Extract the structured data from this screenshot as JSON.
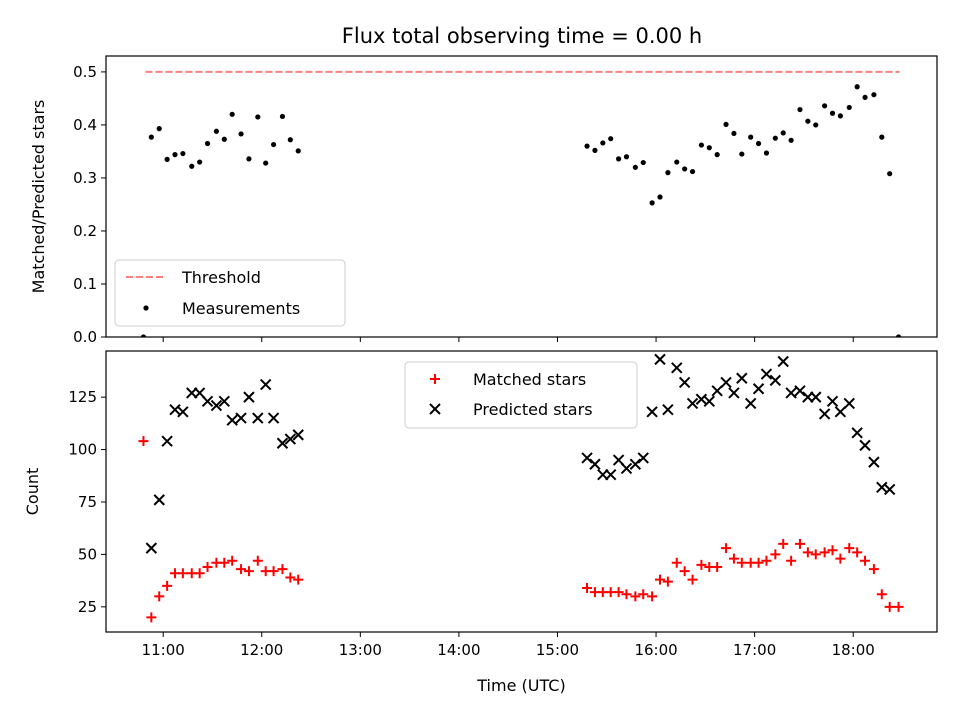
{
  "figure": {
    "title": "Flux total observing time = 0.00 h"
  },
  "chart_data": [
    {
      "type": "scatter",
      "title": "Flux total observing time = 0.00 h",
      "xlabel": "",
      "ylabel": "Matched/Predicted stars",
      "xlim": [
        10.42,
        18.85
      ],
      "ylim": [
        0,
        0.53
      ],
      "x_ticks": [
        11,
        12,
        13,
        14,
        15,
        16,
        17,
        18
      ],
      "x_tick_labels": [
        "11:00",
        "12:00",
        "13:00",
        "14:00",
        "15:00",
        "16:00",
        "17:00",
        "18:00"
      ],
      "x_tick_labels_visible": false,
      "y_ticks": [
        0.0,
        0.1,
        0.2,
        0.3,
        0.4,
        0.5
      ],
      "y_tick_labels": [
        "0.0",
        "0.1",
        "0.2",
        "0.3",
        "0.4",
        "0.5"
      ],
      "legend_position": "lower-left",
      "threshold": {
        "name": "Threshold",
        "value": 0.5,
        "x_range": [
          10.82,
          18.47
        ],
        "color": "#ff7f7f",
        "style": "dashed"
      },
      "series": [
        {
          "name": "Measurements",
          "color": "#000000",
          "marker": "dot",
          "points": [
            [
              10.8,
              0.0
            ],
            [
              10.88,
              0.377
            ],
            [
              10.96,
              0.393
            ],
            [
              11.04,
              0.335
            ],
            [
              11.12,
              0.344
            ],
            [
              11.2,
              0.346
            ],
            [
              11.29,
              0.322
            ],
            [
              11.37,
              0.33
            ],
            [
              11.45,
              0.365
            ],
            [
              11.54,
              0.388
            ],
            [
              11.62,
              0.373
            ],
            [
              11.7,
              0.42
            ],
            [
              11.79,
              0.383
            ],
            [
              11.87,
              0.336
            ],
            [
              11.96,
              0.415
            ],
            [
              12.04,
              0.328
            ],
            [
              12.12,
              0.363
            ],
            [
              12.21,
              0.416
            ],
            [
              12.29,
              0.372
            ],
            [
              12.37,
              0.351
            ],
            [
              15.3,
              0.36
            ],
            [
              15.38,
              0.352
            ],
            [
              15.46,
              0.366
            ],
            [
              15.54,
              0.374
            ],
            [
              15.62,
              0.336
            ],
            [
              15.7,
              0.34
            ],
            [
              15.79,
              0.32
            ],
            [
              15.87,
              0.329
            ],
            [
              15.96,
              0.253
            ],
            [
              16.04,
              0.264
            ],
            [
              16.12,
              0.31
            ],
            [
              16.21,
              0.33
            ],
            [
              16.29,
              0.317
            ],
            [
              16.37,
              0.312
            ],
            [
              16.46,
              0.362
            ],
            [
              16.54,
              0.357
            ],
            [
              16.62,
              0.344
            ],
            [
              16.71,
              0.401
            ],
            [
              16.79,
              0.384
            ],
            [
              16.87,
              0.345
            ],
            [
              16.96,
              0.377
            ],
            [
              17.04,
              0.365
            ],
            [
              17.12,
              0.347
            ],
            [
              17.21,
              0.375
            ],
            [
              17.29,
              0.385
            ],
            [
              17.37,
              0.371
            ],
            [
              17.46,
              0.429
            ],
            [
              17.54,
              0.407
            ],
            [
              17.62,
              0.4
            ],
            [
              17.71,
              0.436
            ],
            [
              17.79,
              0.422
            ],
            [
              17.87,
              0.417
            ],
            [
              17.96,
              0.433
            ],
            [
              18.04,
              0.472
            ],
            [
              18.12,
              0.452
            ],
            [
              18.21,
              0.457
            ],
            [
              18.29,
              0.377
            ],
            [
              18.37,
              0.308
            ],
            [
              18.46,
              0.0
            ]
          ]
        }
      ]
    },
    {
      "type": "scatter",
      "title": "",
      "xlabel": "Time (UTC)",
      "ylabel": "Count",
      "xlim": [
        10.42,
        18.85
      ],
      "ylim": [
        13,
        147
      ],
      "x_ticks": [
        11,
        12,
        13,
        14,
        15,
        16,
        17,
        18
      ],
      "x_tick_labels": [
        "11:00",
        "12:00",
        "13:00",
        "14:00",
        "15:00",
        "16:00",
        "17:00",
        "18:00"
      ],
      "y_ticks": [
        25,
        50,
        75,
        100,
        125
      ],
      "y_tick_labels": [
        "25",
        "50",
        "75",
        "100",
        "125"
      ],
      "legend_position": "top-center",
      "series": [
        {
          "name": "Matched stars",
          "color": "#ff0000",
          "marker": "plus",
          "points": [
            [
              10.8,
              104
            ],
            [
              10.88,
              20
            ],
            [
              10.96,
              30
            ],
            [
              11.04,
              35
            ],
            [
              11.12,
              41
            ],
            [
              11.2,
              41
            ],
            [
              11.29,
              41
            ],
            [
              11.37,
              41
            ],
            [
              11.45,
              44
            ],
            [
              11.54,
              46
            ],
            [
              11.62,
              46
            ],
            [
              11.7,
              47
            ],
            [
              11.79,
              43
            ],
            [
              11.87,
              42
            ],
            [
              11.96,
              47
            ],
            [
              12.04,
              42
            ],
            [
              12.12,
              42
            ],
            [
              12.21,
              43
            ],
            [
              12.29,
              39
            ],
            [
              12.37,
              38
            ],
            [
              15.3,
              34
            ],
            [
              15.38,
              32
            ],
            [
              15.46,
              32
            ],
            [
              15.54,
              32
            ],
            [
              15.62,
              32
            ],
            [
              15.7,
              31
            ],
            [
              15.79,
              30
            ],
            [
              15.87,
              31
            ],
            [
              15.96,
              30
            ],
            [
              16.04,
              38
            ],
            [
              16.12,
              37
            ],
            [
              16.21,
              46
            ],
            [
              16.29,
              42
            ],
            [
              16.37,
              38
            ],
            [
              16.46,
              45
            ],
            [
              16.54,
              44
            ],
            [
              16.62,
              44
            ],
            [
              16.71,
              53
            ],
            [
              16.79,
              48
            ],
            [
              16.87,
              46
            ],
            [
              16.96,
              46
            ],
            [
              17.04,
              46
            ],
            [
              17.12,
              47
            ],
            [
              17.21,
              50
            ],
            [
              17.29,
              55
            ],
            [
              17.37,
              47
            ],
            [
              17.46,
              55
            ],
            [
              17.54,
              51
            ],
            [
              17.62,
              50
            ],
            [
              17.71,
              51
            ],
            [
              17.79,
              52
            ],
            [
              17.87,
              48
            ],
            [
              17.96,
              53
            ],
            [
              18.04,
              51
            ],
            [
              18.12,
              47
            ],
            [
              18.21,
              43
            ],
            [
              18.29,
              31
            ],
            [
              18.37,
              25
            ],
            [
              18.46,
              25
            ]
          ]
        },
        {
          "name": "Predicted stars",
          "color": "#000000",
          "marker": "x",
          "points": [
            [
              10.88,
              53
            ],
            [
              10.96,
              76
            ],
            [
              11.04,
              104
            ],
            [
              11.12,
              119
            ],
            [
              11.2,
              118
            ],
            [
              11.29,
              127
            ],
            [
              11.37,
              127
            ],
            [
              11.45,
              123
            ],
            [
              11.54,
              121
            ],
            [
              11.62,
              123
            ],
            [
              11.7,
              114
            ],
            [
              11.79,
              115
            ],
            [
              11.87,
              125
            ],
            [
              11.96,
              115
            ],
            [
              12.04,
              131
            ],
            [
              12.12,
              115
            ],
            [
              12.21,
              103
            ],
            [
              12.29,
              105
            ],
            [
              12.37,
              107
            ],
            [
              15.3,
              96
            ],
            [
              15.38,
              93
            ],
            [
              15.46,
              88
            ],
            [
              15.54,
              88
            ],
            [
              15.62,
              95
            ],
            [
              15.7,
              91
            ],
            [
              15.79,
              93
            ],
            [
              15.87,
              96
            ],
            [
              15.96,
              118
            ],
            [
              16.04,
              143
            ],
            [
              16.12,
              119
            ],
            [
              16.21,
              139
            ],
            [
              16.29,
              132
            ],
            [
              16.37,
              122
            ],
            [
              16.46,
              124
            ],
            [
              16.54,
              123
            ],
            [
              16.62,
              128
            ],
            [
              16.71,
              132
            ],
            [
              16.79,
              127
            ],
            [
              16.87,
              134
            ],
            [
              16.96,
              122
            ],
            [
              17.04,
              129
            ],
            [
              17.12,
              136
            ],
            [
              17.21,
              133
            ],
            [
              17.29,
              142
            ],
            [
              17.37,
              127
            ],
            [
              17.46,
              128
            ],
            [
              17.54,
              125
            ],
            [
              17.62,
              125
            ],
            [
              17.71,
              117
            ],
            [
              17.79,
              123
            ],
            [
              17.87,
              118
            ],
            [
              17.96,
              122
            ],
            [
              18.04,
              108
            ],
            [
              18.12,
              102
            ],
            [
              18.21,
              94
            ],
            [
              18.29,
              82
            ],
            [
              18.37,
              81
            ]
          ]
        }
      ]
    }
  ]
}
